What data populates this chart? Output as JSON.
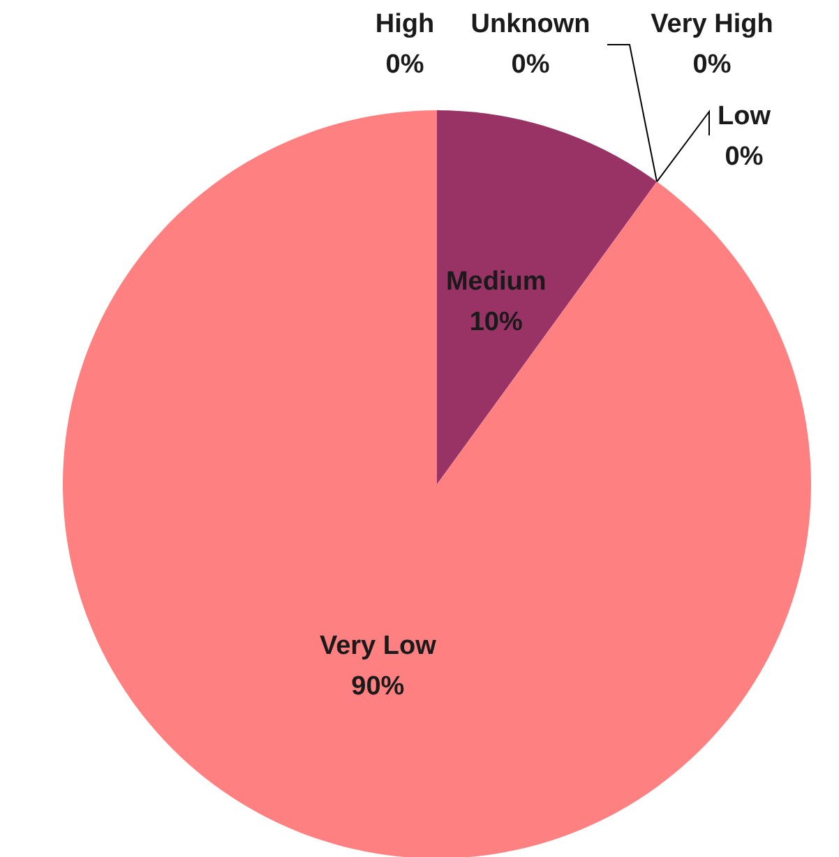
{
  "chart_data": {
    "type": "pie",
    "categories": [
      "Medium",
      "High",
      "Unknown",
      "Very High",
      "Low",
      "Very Low"
    ],
    "values": [
      10,
      0,
      0,
      0,
      0,
      90
    ],
    "colors": [
      "#993366",
      "#c0504d",
      "#9bbb59",
      "#8064a2",
      "#4bacc6",
      "#ff8080"
    ],
    "value_labels": [
      "10%",
      "0%",
      "0%",
      "0%",
      "0%",
      "90%"
    ],
    "legend": false
  }
}
